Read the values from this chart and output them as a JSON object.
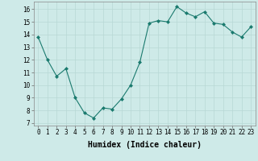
{
  "x": [
    0,
    1,
    2,
    3,
    4,
    5,
    6,
    7,
    8,
    9,
    10,
    11,
    12,
    13,
    14,
    15,
    16,
    17,
    18,
    19,
    20,
    21,
    22,
    23
  ],
  "y": [
    13.8,
    12.0,
    10.7,
    11.3,
    9.0,
    7.8,
    7.4,
    8.2,
    8.1,
    8.9,
    10.0,
    11.8,
    14.9,
    15.1,
    15.0,
    16.2,
    15.7,
    15.4,
    15.8,
    14.9,
    14.8,
    14.2,
    13.8,
    14.6
  ],
  "xlabel": "Humidex (Indice chaleur)",
  "ylim": [
    6.8,
    16.6
  ],
  "xlim": [
    -0.5,
    23.5
  ],
  "line_color": "#1a7a6e",
  "marker": "D",
  "marker_size": 2.0,
  "bg_color": "#ceeae8",
  "grid_color": "#b8d8d5",
  "tick_labels": [
    "0",
    "1",
    "2",
    "3",
    "4",
    "5",
    "6",
    "7",
    "8",
    "9",
    "10",
    "11",
    "12",
    "13",
    "14",
    "15",
    "16",
    "17",
    "18",
    "19",
    "20",
    "21",
    "22",
    "23"
  ],
  "yticks": [
    7,
    8,
    9,
    10,
    11,
    12,
    13,
    14,
    15,
    16
  ],
  "xlabel_fontsize": 7,
  "tick_fontsize": 5.5
}
